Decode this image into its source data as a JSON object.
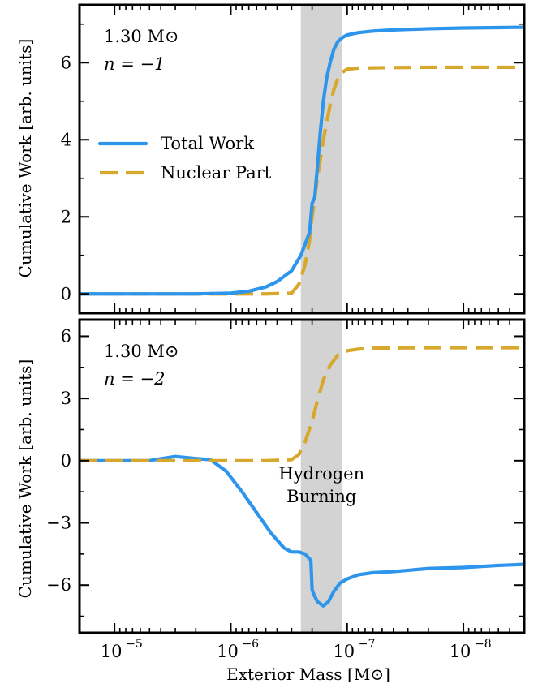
{
  "chart_data": [
    {
      "type": "line",
      "panel": "top",
      "annotations": [
        "1.30 M⊙",
        "n = −1"
      ],
      "ylabel": "Cumulative Work [arb. units]",
      "xscale": "log",
      "xaxis_inverted": true,
      "xlim": [
        2e-05,
        3e-09
      ],
      "ylim": [
        -0.5,
        7.5
      ],
      "yticks": [
        0,
        2,
        4,
        6
      ],
      "ytick_labels": [
        "0",
        "2",
        "4",
        "6"
      ],
      "shaded_band": [
        2.5e-07,
        1.1e-07
      ],
      "legend": {
        "placement": "center-left",
        "entries": [
          "Total Work",
          "Nuclear Part"
        ]
      },
      "colors": {
        "Total Work": "#2e95ec",
        "Nuclear Part": "#d8a82c"
      },
      "series": [
        {
          "name": "Total Work",
          "style": "solid",
          "x": [
            2e-05,
            5e-06,
            2e-06,
            1e-06,
            7e-07,
            5e-07,
            4e-07,
            3e-07,
            2.5e-07,
            2.1e-07,
            2e-07,
            1.9e-07,
            1.8e-07,
            1.7e-07,
            1.6e-07,
            1.5e-07,
            1.4e-07,
            1.3e-07,
            1.2e-07,
            1.1e-07,
            1e-07,
            8e-08,
            6e-08,
            4e-08,
            2e-08,
            1e-08,
            5e-09,
            3e-09
          ],
          "y": [
            0,
            0,
            0,
            0.02,
            0.07,
            0.18,
            0.32,
            0.6,
            1.0,
            1.6,
            2.35,
            2.5,
            3.3,
            4.2,
            5.0,
            5.6,
            6.0,
            6.35,
            6.55,
            6.65,
            6.72,
            6.78,
            6.82,
            6.85,
            6.88,
            6.9,
            6.91,
            6.92
          ]
        },
        {
          "name": "Nuclear Part",
          "style": "dashed",
          "x": [
            2e-05,
            5e-06,
            1e-06,
            5e-07,
            3e-07,
            2.6e-07,
            2.3e-07,
            2.1e-07,
            2e-07,
            1.8e-07,
            1.6e-07,
            1.4e-07,
            1.3e-07,
            1.2e-07,
            1.1e-07,
            1e-07,
            8e-08,
            5e-08,
            2e-08,
            1e-08,
            3e-09
          ],
          "y": [
            0,
            0,
            0,
            0,
            0.02,
            0.25,
            0.75,
            1.4,
            2.0,
            3.0,
            4.0,
            4.9,
            5.3,
            5.6,
            5.75,
            5.83,
            5.86,
            5.87,
            5.88,
            5.88,
            5.88
          ]
        }
      ]
    },
    {
      "type": "line",
      "panel": "bottom",
      "annotations": [
        "1.30 M⊙",
        "n = −2",
        "Hydrogen",
        "Burning"
      ],
      "ylabel": "Cumulative Work [arb. units]",
      "xlabel": "Exterior Mass [M⊙]",
      "xscale": "log",
      "xaxis_inverted": true,
      "xlim": [
        2e-05,
        3e-09
      ],
      "ylim": [
        -8.3,
        6.8
      ],
      "yticks": [
        -6,
        -3,
        0,
        3,
        6
      ],
      "ytick_labels": [
        "−6",
        "−3",
        "0",
        "3",
        "6"
      ],
      "xticks": [
        1e-05,
        1e-06,
        1e-07,
        1e-08
      ],
      "xtick_labels": [
        "10",
        "10",
        "10",
        "10"
      ],
      "xtick_exponents": [
        "−5",
        "−6",
        "−7",
        "−8"
      ],
      "shaded_band": [
        2.5e-07,
        1.1e-07
      ],
      "colors": {
        "Total Work": "#2e95ec",
        "Nuclear Part": "#d8a82c"
      },
      "series": [
        {
          "name": "Total Work",
          "style": "solid",
          "x": [
            2e-05,
            5e-06,
            4.5e-06,
            3e-06,
            2e-06,
            1.5e-06,
            1.1e-06,
            8e-07,
            6e-07,
            4.5e-07,
            3.5e-07,
            3e-07,
            2.6e-07,
            2.3e-07,
            2.05e-07,
            2e-07,
            1.95e-07,
            1.8e-07,
            1.6e-07,
            1.45e-07,
            1.3e-07,
            1.15e-07,
            1e-07,
            8e-08,
            6e-08,
            4e-08,
            2e-08,
            1e-08,
            5e-09,
            3e-09
          ],
          "y": [
            0,
            0,
            0.05,
            0.2,
            0.1,
            0.05,
            -0.5,
            -1.5,
            -2.5,
            -3.5,
            -4.2,
            -4.4,
            -4.4,
            -4.5,
            -4.8,
            -6.2,
            -6.4,
            -6.8,
            -7.0,
            -6.8,
            -6.3,
            -5.9,
            -5.7,
            -5.5,
            -5.4,
            -5.35,
            -5.2,
            -5.15,
            -5.05,
            -5.0
          ]
        },
        {
          "name": "Nuclear Part",
          "style": "dashed",
          "x": [
            2e-05,
            5e-06,
            1e-06,
            5e-07,
            3e-07,
            2.6e-07,
            2.3e-07,
            2e-07,
            1.8e-07,
            1.6e-07,
            1.4e-07,
            1.2e-07,
            1e-07,
            8e-08,
            6e-08,
            4e-08,
            2e-08,
            1e-08,
            5e-09,
            3e-09
          ],
          "y": [
            0,
            0,
            0,
            0,
            0.05,
            0.3,
            0.9,
            1.9,
            2.9,
            3.9,
            4.6,
            5.1,
            5.3,
            5.38,
            5.42,
            5.44,
            5.45,
            5.45,
            5.45,
            5.45
          ]
        }
      ]
    }
  ]
}
